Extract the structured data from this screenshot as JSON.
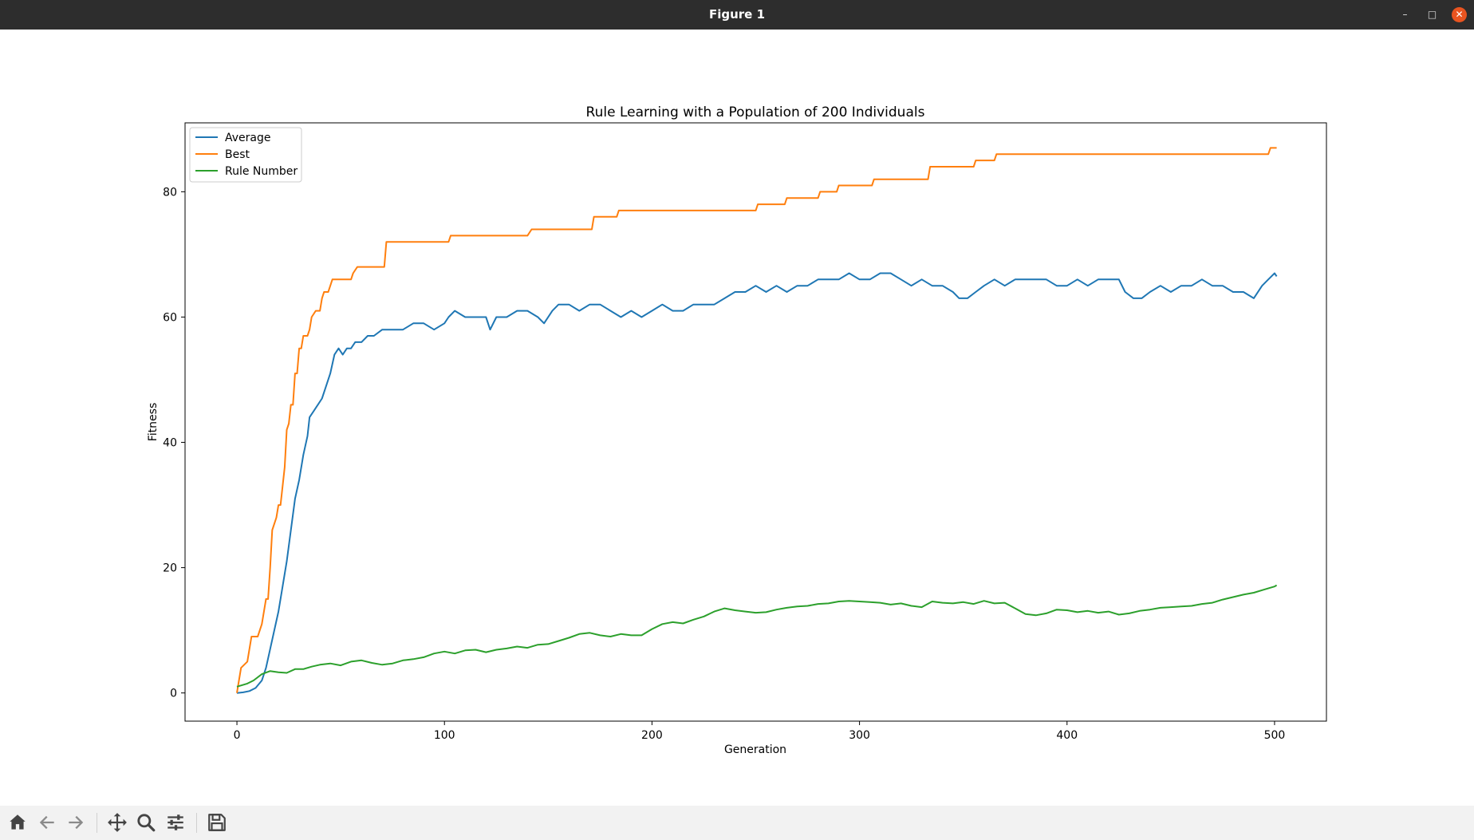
{
  "window": {
    "title": "Figure 1"
  },
  "toolbar": {
    "icons": [
      "home-icon",
      "back-arrow-icon",
      "forward-arrow-icon",
      "pan-move-icon",
      "zoom-magnifier-icon",
      "configure-subplots-icon",
      "save-floppy-icon"
    ]
  },
  "colors": {
    "average": "#1f77b4",
    "best": "#ff7f0e",
    "rule_number": "#2ca02c",
    "close_button": "#e95420"
  },
  "chart_data": {
    "type": "line",
    "title": "Rule Learning with a Population of 200 Individuals",
    "xlabel": "Generation",
    "ylabel": "Fitness",
    "xlim": [
      -25,
      525
    ],
    "ylim": [
      -4.5,
      91
    ],
    "xticks": [
      0,
      100,
      200,
      300,
      400,
      500
    ],
    "yticks": [
      0,
      20,
      40,
      60,
      80
    ],
    "grid": false,
    "legend": "top-left",
    "series": [
      {
        "name": "Average",
        "color": "#1f77b4",
        "points": [
          [
            0,
            0
          ],
          [
            3,
            0.1
          ],
          [
            6,
            0.3
          ],
          [
            9,
            0.8
          ],
          [
            12,
            2
          ],
          [
            14,
            4
          ],
          [
            16,
            7
          ],
          [
            18,
            10
          ],
          [
            20,
            13
          ],
          [
            22,
            17
          ],
          [
            24,
            21
          ],
          [
            26,
            26
          ],
          [
            28,
            31
          ],
          [
            30,
            34
          ],
          [
            32,
            38
          ],
          [
            34,
            41
          ],
          [
            35,
            44
          ],
          [
            37,
            45
          ],
          [
            39,
            46
          ],
          [
            41,
            47
          ],
          [
            43,
            49
          ],
          [
            45,
            51
          ],
          [
            47,
            54
          ],
          [
            49,
            55
          ],
          [
            51,
            54
          ],
          [
            53,
            55
          ],
          [
            55,
            55
          ],
          [
            57,
            56
          ],
          [
            60,
            56
          ],
          [
            63,
            57
          ],
          [
            66,
            57
          ],
          [
            70,
            58
          ],
          [
            75,
            58
          ],
          [
            80,
            58
          ],
          [
            85,
            59
          ],
          [
            90,
            59
          ],
          [
            95,
            58
          ],
          [
            100,
            59
          ],
          [
            102,
            60
          ],
          [
            105,
            61
          ],
          [
            110,
            60
          ],
          [
            115,
            60
          ],
          [
            120,
            60
          ],
          [
            122,
            58
          ],
          [
            125,
            60
          ],
          [
            130,
            60
          ],
          [
            135,
            61
          ],
          [
            140,
            61
          ],
          [
            145,
            60
          ],
          [
            148,
            59
          ],
          [
            152,
            61
          ],
          [
            155,
            62
          ],
          [
            160,
            62
          ],
          [
            165,
            61
          ],
          [
            170,
            62
          ],
          [
            175,
            62
          ],
          [
            180,
            61
          ],
          [
            185,
            60
          ],
          [
            190,
            61
          ],
          [
            195,
            60
          ],
          [
            200,
            61
          ],
          [
            205,
            62
          ],
          [
            210,
            61
          ],
          [
            215,
            61
          ],
          [
            220,
            62
          ],
          [
            225,
            62
          ],
          [
            230,
            62
          ],
          [
            235,
            63
          ],
          [
            240,
            64
          ],
          [
            245,
            64
          ],
          [
            250,
            65
          ],
          [
            255,
            64
          ],
          [
            260,
            65
          ],
          [
            265,
            64
          ],
          [
            270,
            65
          ],
          [
            275,
            65
          ],
          [
            280,
            66
          ],
          [
            285,
            66
          ],
          [
            290,
            66
          ],
          [
            295,
            67
          ],
          [
            300,
            66
          ],
          [
            305,
            66
          ],
          [
            310,
            67
          ],
          [
            315,
            67
          ],
          [
            320,
            66
          ],
          [
            325,
            65
          ],
          [
            330,
            66
          ],
          [
            335,
            65
          ],
          [
            340,
            65
          ],
          [
            345,
            64
          ],
          [
            348,
            63
          ],
          [
            352,
            63
          ],
          [
            356,
            64
          ],
          [
            360,
            65
          ],
          [
            365,
            66
          ],
          [
            370,
            65
          ],
          [
            375,
            66
          ],
          [
            380,
            66
          ],
          [
            385,
            66
          ],
          [
            390,
            66
          ],
          [
            395,
            65
          ],
          [
            400,
            65
          ],
          [
            405,
            66
          ],
          [
            410,
            65
          ],
          [
            415,
            66
          ],
          [
            420,
            66
          ],
          [
            425,
            66
          ],
          [
            428,
            64
          ],
          [
            432,
            63
          ],
          [
            436,
            63
          ],
          [
            440,
            64
          ],
          [
            445,
            65
          ],
          [
            450,
            64
          ],
          [
            455,
            65
          ],
          [
            460,
            65
          ],
          [
            465,
            66
          ],
          [
            470,
            65
          ],
          [
            475,
            65
          ],
          [
            480,
            64
          ],
          [
            485,
            64
          ],
          [
            490,
            63
          ],
          [
            494,
            65
          ],
          [
            497,
            66
          ],
          [
            500,
            67
          ],
          [
            501,
            66.5
          ]
        ]
      },
      {
        "name": "Best",
        "color": "#ff7f0e",
        "points": [
          [
            0,
            0
          ],
          [
            2,
            4
          ],
          [
            5,
            5
          ],
          [
            7,
            9
          ],
          [
            10,
            9
          ],
          [
            12,
            11
          ],
          [
            14,
            15
          ],
          [
            15,
            15
          ],
          [
            16,
            20
          ],
          [
            17,
            26
          ],
          [
            19,
            28
          ],
          [
            20,
            30
          ],
          [
            21,
            30
          ],
          [
            22,
            33
          ],
          [
            23,
            36
          ],
          [
            24,
            42
          ],
          [
            25,
            43
          ],
          [
            26,
            46
          ],
          [
            27,
            46
          ],
          [
            28,
            51
          ],
          [
            29,
            51
          ],
          [
            30,
            55
          ],
          [
            31,
            55
          ],
          [
            32,
            57
          ],
          [
            34,
            57
          ],
          [
            35,
            58
          ],
          [
            36,
            60
          ],
          [
            38,
            61
          ],
          [
            40,
            61
          ],
          [
            41,
            63
          ],
          [
            42,
            64
          ],
          [
            44,
            64
          ],
          [
            45,
            65
          ],
          [
            46,
            66
          ],
          [
            52,
            66
          ],
          [
            55,
            66
          ],
          [
            56,
            67
          ],
          [
            58,
            68
          ],
          [
            64,
            68
          ],
          [
            71,
            68
          ],
          [
            72,
            72
          ],
          [
            80,
            72
          ],
          [
            90,
            72
          ],
          [
            102,
            72
          ],
          [
            103,
            73
          ],
          [
            120,
            73
          ],
          [
            140,
            73
          ],
          [
            142,
            74
          ],
          [
            160,
            74
          ],
          [
            171,
            74
          ],
          [
            172,
            76
          ],
          [
            180,
            76
          ],
          [
            183,
            76
          ],
          [
            184,
            77
          ],
          [
            200,
            77
          ],
          [
            250,
            77
          ],
          [
            251,
            78
          ],
          [
            264,
            78
          ],
          [
            265,
            79
          ],
          [
            280,
            79
          ],
          [
            281,
            80
          ],
          [
            289,
            80
          ],
          [
            290,
            81
          ],
          [
            300,
            81
          ],
          [
            306,
            81
          ],
          [
            307,
            82
          ],
          [
            325,
            82
          ],
          [
            333,
            82
          ],
          [
            334,
            84
          ],
          [
            340,
            84
          ],
          [
            355,
            84
          ],
          [
            356,
            85
          ],
          [
            365,
            85
          ],
          [
            366,
            86
          ],
          [
            380,
            86
          ],
          [
            400,
            86
          ],
          [
            450,
            86
          ],
          [
            497,
            86
          ],
          [
            498,
            87
          ],
          [
            501,
            87
          ]
        ]
      },
      {
        "name": "Rule Number",
        "color": "#2ca02c",
        "points": [
          [
            0,
            1
          ],
          [
            5,
            1.5
          ],
          [
            8,
            2
          ],
          [
            12,
            3
          ],
          [
            16,
            3.5
          ],
          [
            20,
            3.3
          ],
          [
            24,
            3.2
          ],
          [
            28,
            3.8
          ],
          [
            32,
            3.8
          ],
          [
            36,
            4.2
          ],
          [
            40,
            4.5
          ],
          [
            45,
            4.7
          ],
          [
            50,
            4.4
          ],
          [
            55,
            5
          ],
          [
            60,
            5.2
          ],
          [
            65,
            4.8
          ],
          [
            70,
            4.5
          ],
          [
            75,
            4.7
          ],
          [
            80,
            5.2
          ],
          [
            85,
            5.4
          ],
          [
            90,
            5.7
          ],
          [
            95,
            6.3
          ],
          [
            100,
            6.6
          ],
          [
            105,
            6.3
          ],
          [
            110,
            6.8
          ],
          [
            115,
            6.9
          ],
          [
            120,
            6.5
          ],
          [
            125,
            6.9
          ],
          [
            130,
            7.1
          ],
          [
            135,
            7.4
          ],
          [
            140,
            7.2
          ],
          [
            145,
            7.7
          ],
          [
            150,
            7.8
          ],
          [
            155,
            8.3
          ],
          [
            160,
            8.8
          ],
          [
            165,
            9.4
          ],
          [
            170,
            9.6
          ],
          [
            175,
            9.2
          ],
          [
            180,
            9
          ],
          [
            185,
            9.4
          ],
          [
            190,
            9.2
          ],
          [
            195,
            9.2
          ],
          [
            200,
            10.2
          ],
          [
            205,
            11
          ],
          [
            210,
            11.3
          ],
          [
            215,
            11.1
          ],
          [
            220,
            11.7
          ],
          [
            225,
            12.2
          ],
          [
            230,
            13
          ],
          [
            235,
            13.5
          ],
          [
            240,
            13.2
          ],
          [
            245,
            13
          ],
          [
            250,
            12.8
          ],
          [
            255,
            12.9
          ],
          [
            260,
            13.3
          ],
          [
            265,
            13.6
          ],
          [
            270,
            13.8
          ],
          [
            275,
            13.9
          ],
          [
            280,
            14.2
          ],
          [
            285,
            14.3
          ],
          [
            290,
            14.6
          ],
          [
            295,
            14.7
          ],
          [
            300,
            14.6
          ],
          [
            305,
            14.5
          ],
          [
            310,
            14.4
          ],
          [
            315,
            14.1
          ],
          [
            320,
            14.3
          ],
          [
            325,
            13.9
          ],
          [
            330,
            13.7
          ],
          [
            335,
            14.6
          ],
          [
            340,
            14.4
          ],
          [
            345,
            14.3
          ],
          [
            350,
            14.5
          ],
          [
            355,
            14.2
          ],
          [
            360,
            14.7
          ],
          [
            365,
            14.3
          ],
          [
            370,
            14.4
          ],
          [
            375,
            13.5
          ],
          [
            380,
            12.6
          ],
          [
            385,
            12.4
          ],
          [
            390,
            12.7
          ],
          [
            395,
            13.3
          ],
          [
            400,
            13.2
          ],
          [
            405,
            12.9
          ],
          [
            410,
            13.1
          ],
          [
            415,
            12.8
          ],
          [
            420,
            13
          ],
          [
            425,
            12.5
          ],
          [
            430,
            12.7
          ],
          [
            435,
            13.1
          ],
          [
            440,
            13.3
          ],
          [
            445,
            13.6
          ],
          [
            450,
            13.7
          ],
          [
            455,
            13.8
          ],
          [
            460,
            13.9
          ],
          [
            465,
            14.2
          ],
          [
            470,
            14.4
          ],
          [
            475,
            14.9
          ],
          [
            480,
            15.3
          ],
          [
            485,
            15.7
          ],
          [
            490,
            16
          ],
          [
            495,
            16.5
          ],
          [
            500,
            17
          ],
          [
            501,
            17.2
          ]
        ]
      }
    ]
  }
}
